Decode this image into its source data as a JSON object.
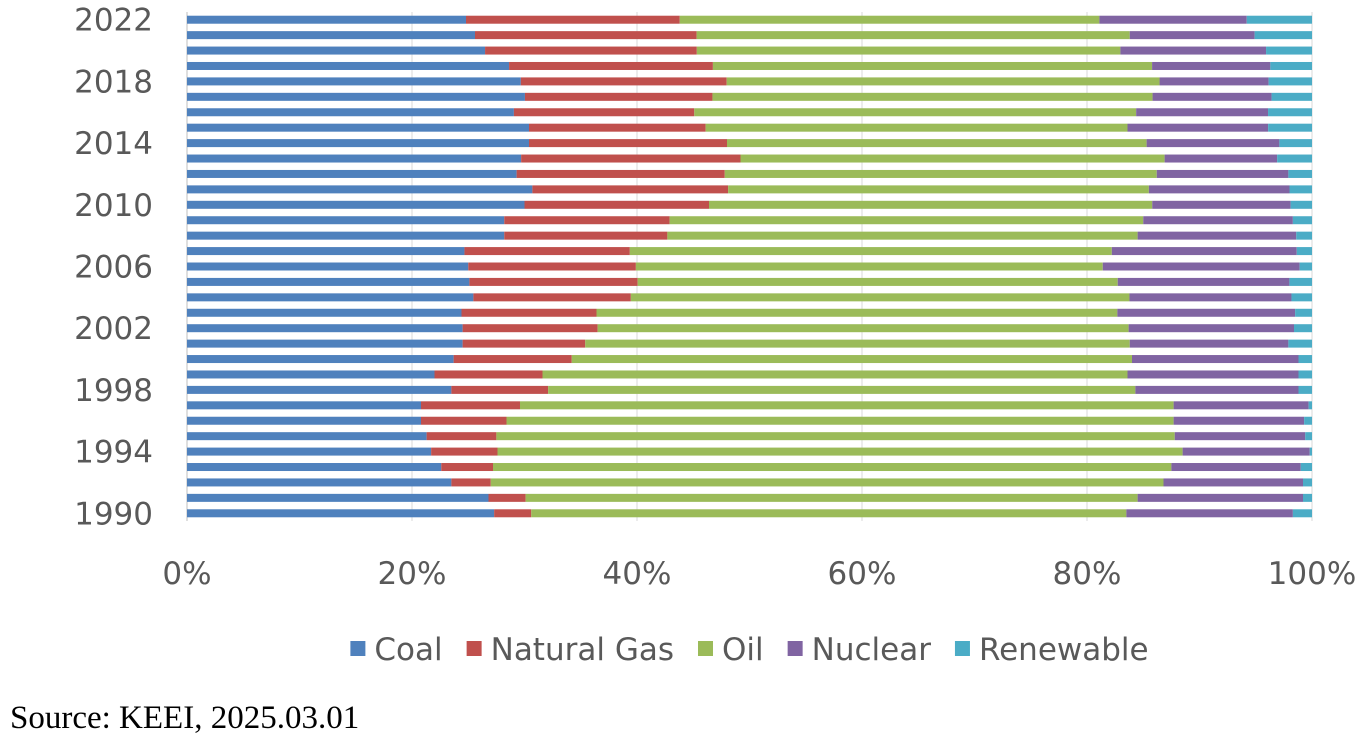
{
  "chart_data": {
    "type": "bar",
    "orientation": "horizontal",
    "stacked": "percent",
    "years": [
      1990,
      1991,
      1992,
      1993,
      1994,
      1995,
      1996,
      1997,
      1998,
      1999,
      2000,
      2001,
      2002,
      2003,
      2004,
      2005,
      2006,
      2007,
      2008,
      2009,
      2010,
      2011,
      2012,
      2013,
      2014,
      2015,
      2016,
      2017,
      2018,
      2019,
      2020,
      2021,
      2022
    ],
    "y_tick_labels": [
      "1990",
      "1994",
      "1998",
      "2002",
      "2006",
      "2010",
      "2014",
      "2018",
      "2022"
    ],
    "x_tick_labels": [
      "0%",
      "20%",
      "40%",
      "60%",
      "80%",
      "100%"
    ],
    "xlim": [
      0,
      100
    ],
    "legend_position": "bottom",
    "series": [
      {
        "name": "Coal",
        "color": "#4f81bd",
        "values": [
          27.3,
          26.8,
          23.5,
          22.6,
          21.7,
          21.3,
          20.8,
          20.8,
          23.5,
          22.0,
          23.7,
          24.5,
          24.5,
          24.4,
          25.1,
          25.0,
          25.0,
          25.5,
          28.2,
          28.2,
          30.0,
          30.7,
          29.3,
          29.7,
          30.4,
          30.4,
          29.0,
          30.1,
          30.0,
          28.6,
          26.6,
          25.6,
          24.8
        ]
      },
      {
        "name": "Natural Gas",
        "color": "#c0504d",
        "values": [
          3.3,
          3.3,
          3.5,
          4.6,
          5.9,
          6.2,
          7.6,
          8.8,
          8.6,
          9.6,
          10.5,
          10.9,
          12.0,
          12.0,
          13.8,
          14.9,
          14.9,
          15.2,
          14.5,
          14.7,
          16.4,
          17.4,
          18.5,
          19.5,
          17.6,
          15.7,
          16.0,
          16.7,
          18.5,
          18.1,
          18.9,
          19.7,
          19.0
        ]
      },
      {
        "name": "Oil",
        "color": "#9bbb59",
        "values": [
          52.9,
          54.4,
          59.8,
          60.3,
          60.9,
          60.3,
          59.3,
          58.1,
          52.2,
          52.0,
          49.8,
          48.4,
          47.2,
          46.3,
          43.7,
          42.5,
          41.5,
          44.3,
          41.8,
          42.1,
          39.4,
          37.4,
          38.4,
          37.7,
          37.3,
          37.5,
          39.2,
          39.2,
          38.9,
          39.0,
          37.8,
          38.5,
          37.3
        ]
      },
      {
        "name": "Nuclear",
        "color": "#8064a2",
        "values": [
          14.8,
          14.7,
          12.4,
          11.5,
          11.3,
          11.6,
          11.6,
          12.0,
          14.5,
          15.2,
          14.8,
          14.1,
          14.7,
          15.8,
          14.2,
          15.2,
          17.5,
          17.0,
          14.1,
          13.3,
          12.3,
          12.5,
          11.7,
          10.0,
          11.8,
          12.5,
          11.7,
          10.6,
          9.8,
          10.5,
          13.0,
          11.1,
          13.1
        ]
      },
      {
        "name": "Renewable",
        "color": "#4bacc6",
        "values": [
          1.7,
          0.8,
          0.8,
          1.0,
          0.2,
          0.6,
          0.7,
          0.3,
          1.2,
          1.2,
          1.2,
          2.1,
          1.6,
          1.5,
          1.8,
          2.0,
          1.1,
          1.4,
          1.4,
          1.7,
          1.9,
          2.0,
          2.1,
          3.1,
          2.9,
          3.9,
          3.9,
          3.6,
          3.9,
          3.7,
          4.1,
          5.1,
          5.8
        ]
      }
    ]
  },
  "source": "Source: KEEI, 2025.03.01"
}
